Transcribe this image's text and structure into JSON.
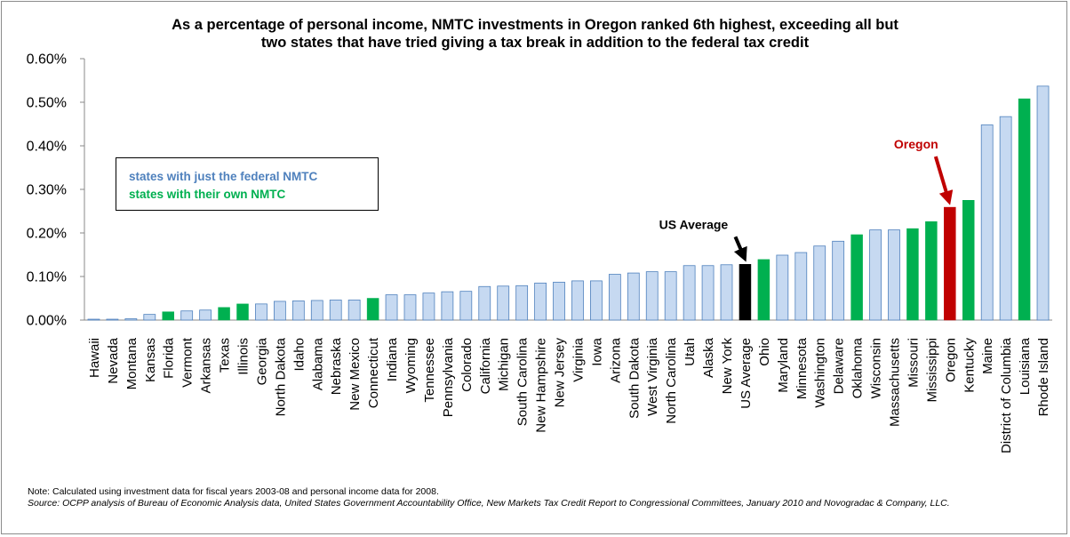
{
  "chart_data": {
    "type": "bar",
    "title_line1": "As a percentage of personal income, NMTC investments in Oregon ranked 6th highest, exceeding all but",
    "title_line2": "two states that have tried giving a tax break in addition to the federal tax credit",
    "ylim": [
      0,
      0.6
    ],
    "ytick_labels": [
      "0.00%",
      "0.10%",
      "0.20%",
      "0.30%",
      "0.40%",
      "0.50%",
      "0.60%"
    ],
    "ytick_values": [
      0,
      0.1,
      0.2,
      0.3,
      0.4,
      0.5,
      0.6
    ],
    "grid": false,
    "categories": [
      "Hawaii",
      "Nevada",
      "Montana",
      "Kansas",
      "Florida",
      "Vermont",
      "Arkansas",
      "Texas",
      "Illinois",
      "Georgia",
      "North Dakota",
      "Idaho",
      "Alabama",
      "Nebraska",
      "New Mexico",
      "Connecticut",
      "Indiana",
      "Wyoming",
      "Tennessee",
      "Pennsylvania",
      "Colorado",
      "California",
      "Michigan",
      "South Carolina",
      "New Hampshire",
      "New Jersey",
      "Virginia",
      "Iowa",
      "Arizona",
      "South Dakota",
      "West Virginia",
      "North Carolina",
      "Utah",
      "Alaska",
      "New York",
      "US Average",
      "Ohio",
      "Maryland",
      "Minnesota",
      "Washington",
      "Delaware",
      "Oklahoma",
      "Wisconsin",
      "Massachusetts",
      "Missouri",
      "Mississippi",
      "Oregon",
      "Kentucky",
      "Maine",
      "District of Columbia",
      "Louisiana",
      "Rhode Island"
    ],
    "values": [
      0.002,
      0.002,
      0.003,
      0.013,
      0.019,
      0.021,
      0.023,
      0.029,
      0.037,
      0.037,
      0.043,
      0.044,
      0.045,
      0.046,
      0.046,
      0.05,
      0.058,
      0.058,
      0.062,
      0.065,
      0.066,
      0.077,
      0.078,
      0.079,
      0.085,
      0.087,
      0.09,
      0.09,
      0.105,
      0.108,
      0.111,
      0.111,
      0.125,
      0.125,
      0.127,
      0.128,
      0.139,
      0.149,
      0.155,
      0.17,
      0.181,
      0.196,
      0.207,
      0.207,
      0.21,
      0.226,
      0.259,
      0.275,
      0.448,
      0.467,
      0.508,
      0.537
    ],
    "groups": [
      "fed",
      "fed",
      "fed",
      "fed",
      "own",
      "fed",
      "fed",
      "own",
      "own",
      "fed",
      "fed",
      "fed",
      "fed",
      "fed",
      "fed",
      "own",
      "fed",
      "fed",
      "fed",
      "fed",
      "fed",
      "fed",
      "fed",
      "fed",
      "fed",
      "fed",
      "fed",
      "fed",
      "fed",
      "fed",
      "fed",
      "fed",
      "fed",
      "fed",
      "fed",
      "avg",
      "own",
      "fed",
      "fed",
      "fed",
      "fed",
      "own",
      "fed",
      "fed",
      "own",
      "own",
      "oregon",
      "own",
      "fed",
      "fed",
      "own",
      "fed"
    ],
    "colors": {
      "fed_fill": "#c6d9f1",
      "fed_stroke": "#4f81bd",
      "own": "#00b050",
      "avg": "#000000",
      "oregon": "#c00000",
      "legend_fed_text": "#4f81bd",
      "legend_own_text": "#00b050"
    },
    "legend": {
      "placement": "left-middle",
      "entries": [
        "states with just the federal NMTC",
        "states with their own NMTC"
      ]
    },
    "annotations": [
      {
        "text": "US Average",
        "target": "US Average",
        "color": "#000000"
      },
      {
        "text": "Oregon",
        "target": "Oregon",
        "color": "#c00000"
      }
    ]
  },
  "notes": {
    "line1": "Note: Calculated using investment data for fiscal years 2003-08 and personal income data for 2008.",
    "source": "Source: OCPP analysis of Bureau of Economic Analysis data, United States Government Accountability Office, New Markets Tax Credit Report to Congressional Committees, January 2010 and Novogradac & Company, LLC."
  }
}
